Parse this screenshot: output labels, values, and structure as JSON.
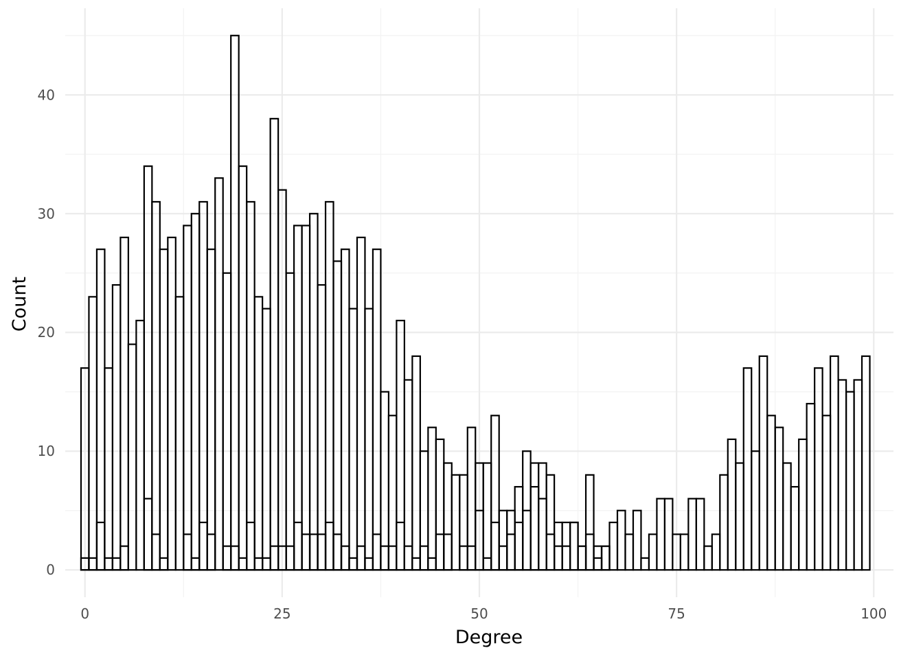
{
  "chart_data": {
    "type": "bar",
    "subtype": "histogram",
    "title": "",
    "xlabel": "Degree",
    "ylabel": "Count",
    "xlim": [
      -2.5,
      102.5
    ],
    "ylim": [
      -2.3,
      47.3
    ],
    "x_ticks": [
      0,
      25,
      50,
      75,
      100
    ],
    "y_ticks": [
      0,
      10,
      20,
      30,
      40
    ],
    "x_minor_ticks": [
      12.5,
      37.5,
      62.5,
      87.5
    ],
    "y_minor_ticks": [
      5,
      15,
      25,
      35,
      45
    ],
    "grid": true,
    "bar_fill": "none",
    "bar_outline": "#000000",
    "bin_width": 1,
    "series": [
      {
        "x": [
          0,
          1,
          2,
          3,
          4,
          5,
          6,
          7,
          8,
          9,
          10,
          11,
          12,
          13,
          14,
          15,
          16,
          17,
          18,
          19,
          20,
          21,
          22,
          23,
          24,
          25,
          26,
          27,
          28,
          29,
          30,
          31,
          32,
          33,
          34,
          35,
          36,
          37,
          38,
          39,
          40,
          41,
          42,
          43,
          44,
          45,
          46,
          47,
          48,
          49,
          50,
          51,
          52,
          53,
          54,
          55,
          56,
          57,
          58,
          59,
          60,
          61,
          62,
          63,
          64,
          65,
          66,
          67,
          68,
          69,
          70,
          71,
          72,
          73,
          74,
          75,
          76,
          77,
          78,
          79,
          80,
          81,
          82,
          83,
          84,
          85,
          86,
          87,
          88,
          89,
          90,
          91,
          92,
          93,
          94,
          95,
          96,
          97,
          98,
          99
        ],
        "values": [
          17,
          23,
          27,
          17,
          24,
          28,
          19,
          21,
          34,
          31,
          27,
          28,
          23,
          29,
          30,
          31,
          27,
          33,
          25,
          45,
          34,
          31,
          23,
          22,
          38,
          32,
          25,
          29,
          29,
          30,
          24,
          31,
          26,
          27,
          22,
          28,
          22,
          27,
          15,
          13,
          21,
          16,
          18,
          10,
          12,
          11,
          9,
          8,
          8,
          12,
          9,
          9,
          13,
          5,
          5,
          7,
          10,
          9,
          9,
          8,
          4,
          4,
          4,
          2,
          8,
          2,
          2,
          4,
          5,
          3,
          5,
          1,
          3,
          6,
          6,
          3,
          3,
          6,
          6,
          2,
          3,
          8,
          11,
          9,
          17,
          10,
          18,
          13,
          12,
          9,
          7,
          11,
          14,
          17,
          13,
          18,
          16,
          15,
          16,
          18
        ]
      },
      {
        "x": [
          0,
          1,
          2,
          3,
          4,
          5,
          6,
          7,
          8,
          9,
          10,
          11,
          12,
          13,
          14,
          15,
          16,
          17,
          18,
          19,
          20,
          21,
          22,
          23,
          24,
          25,
          26,
          27,
          28,
          29,
          30,
          31,
          32,
          33,
          34,
          35,
          36,
          37,
          38,
          39,
          40,
          41,
          42,
          43,
          44,
          45,
          46,
          47,
          48,
          49,
          50,
          51,
          52,
          53,
          54,
          55,
          56,
          57,
          58,
          59,
          60,
          61,
          62,
          63,
          64,
          65,
          66,
          67,
          68,
          69,
          70,
          71,
          72,
          73,
          74,
          75,
          76,
          77,
          78,
          79,
          80,
          81,
          82,
          83,
          84,
          85,
          86,
          87,
          88,
          89,
          90,
          91,
          92,
          93,
          94,
          95,
          96,
          97,
          98,
          99
        ],
        "values": [
          1,
          1,
          4,
          1,
          1,
          2,
          0,
          0,
          6,
          3,
          1,
          0,
          0,
          3,
          1,
          4,
          3,
          0,
          2,
          2,
          1,
          4,
          1,
          1,
          2,
          2,
          2,
          4,
          3,
          3,
          3,
          4,
          3,
          2,
          1,
          2,
          1,
          3,
          2,
          2,
          4,
          2,
          1,
          2,
          1,
          3,
          3,
          0,
          2,
          2,
          5,
          1,
          4,
          2,
          3,
          4,
          5,
          7,
          6,
          3,
          2,
          2,
          4,
          2,
          3,
          1,
          2,
          0,
          0,
          0,
          0,
          0,
          0,
          0,
          0,
          0,
          0,
          0,
          0,
          0,
          0,
          0,
          0,
          0,
          0,
          0,
          0,
          0,
          0,
          0,
          0,
          0,
          0,
          0,
          0,
          0,
          0,
          0,
          0,
          0
        ]
      }
    ]
  }
}
